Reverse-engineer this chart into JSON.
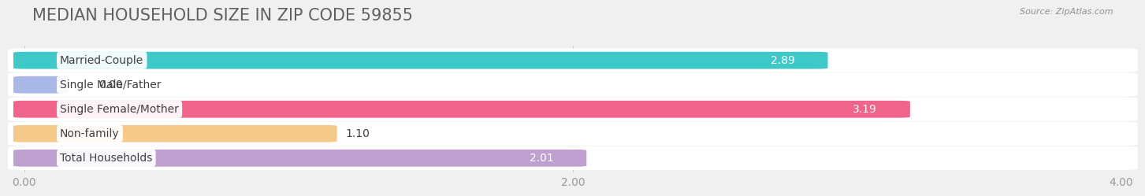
{
  "title": "MEDIAN HOUSEHOLD SIZE IN ZIP CODE 59855",
  "source": "Source: ZipAtlas.com",
  "categories": [
    "Married-Couple",
    "Single Male/Father",
    "Single Female/Mother",
    "Non-family",
    "Total Households"
  ],
  "values": [
    2.89,
    0.0,
    3.19,
    1.1,
    2.01
  ],
  "bar_colors": [
    "#3EC8C8",
    "#AAB8E8",
    "#F0638A",
    "#F5C98A",
    "#C0A0D0"
  ],
  "xlim": [
    0,
    4.0
  ],
  "xticks": [
    0.0,
    2.0,
    4.0
  ],
  "xtick_labels": [
    "0.00",
    "2.00",
    "4.00"
  ],
  "background_color": "#f0f0f0",
  "bar_bg_color": "#ffffff",
  "title_fontsize": 15,
  "label_fontsize": 10,
  "value_fontsize": 10,
  "title_color": "#606060",
  "source_color": "#909090"
}
